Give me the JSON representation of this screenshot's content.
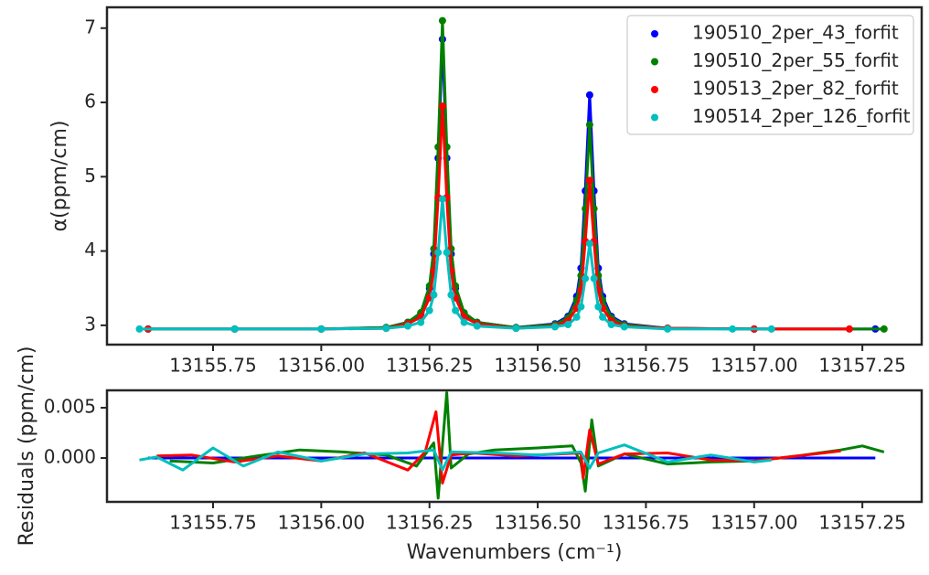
{
  "chart_data": [
    {
      "type": "line",
      "marker": true,
      "ylabel": "α(ppm/cm)",
      "legend": "upper right",
      "xlim": [
        13155.505,
        13157.387
      ],
      "ylim": [
        2.74,
        7.28
      ],
      "xticks": [
        13155.75,
        {
          "value": 13156.0,
          "label": "13156.00"
        },
        13156.25,
        {
          "value": 13156.5,
          "label": "13156.50"
        },
        13156.75,
        {
          "value": 13157.0,
          "label": "13157.00"
        },
        13157.25
      ],
      "yticks": [
        3,
        4,
        5,
        6,
        7
      ],
      "series": [
        {
          "name": "190510_2per_43_forfit",
          "color": "#0000ff",
          "x": [
            13155.6,
            13155.8,
            13156.0,
            13156.15,
            13156.2,
            13156.23,
            13156.25,
            13156.26,
            13156.27,
            13156.28,
            13156.29,
            13156.3,
            13156.31,
            13156.33,
            13156.36,
            13156.45,
            13156.54,
            13156.57,
            13156.59,
            13156.6,
            13156.61,
            13156.62,
            13156.63,
            13156.64,
            13156.65,
            13156.67,
            13156.7,
            13156.8,
            13157.0,
            13157.28
          ],
          "values": [
            2.95,
            2.95,
            2.95,
            2.97,
            3.04,
            3.16,
            3.5,
            3.96,
            5.25,
            6.85,
            5.25,
            3.96,
            3.5,
            3.16,
            3.04,
            2.97,
            3.02,
            3.12,
            3.39,
            3.77,
            4.81,
            6.1,
            4.81,
            3.77,
            3.39,
            3.12,
            3.02,
            2.96,
            2.95,
            2.95
          ]
        },
        {
          "name": "190510_2per_55_forfit",
          "color": "#008000",
          "x": [
            13155.6,
            13155.8,
            13156.0,
            13156.15,
            13156.2,
            13156.23,
            13156.25,
            13156.26,
            13156.27,
            13156.28,
            13156.29,
            13156.3,
            13156.31,
            13156.33,
            13156.36,
            13156.45,
            13156.54,
            13156.57,
            13156.59,
            13156.6,
            13156.61,
            13156.62,
            13156.63,
            13156.64,
            13156.65,
            13156.67,
            13156.7,
            13156.8,
            13157.0,
            13157.3
          ],
          "values": [
            2.95,
            2.95,
            2.95,
            2.97,
            3.04,
            3.17,
            3.53,
            4.03,
            5.4,
            7.1,
            5.4,
            4.03,
            3.53,
            3.17,
            3.04,
            2.97,
            3.01,
            3.1,
            3.34,
            3.67,
            4.57,
            5.7,
            4.57,
            3.67,
            3.34,
            3.1,
            3.01,
            2.96,
            2.95,
            2.95
          ]
        },
        {
          "name": "190513_2per_82_forfit",
          "color": "#ff0000",
          "x": [
            13155.6,
            13155.8,
            13156.0,
            13156.15,
            13156.2,
            13156.23,
            13156.25,
            13156.26,
            13156.27,
            13156.28,
            13156.29,
            13156.3,
            13156.31,
            13156.33,
            13156.36,
            13156.45,
            13156.54,
            13156.57,
            13156.59,
            13156.6,
            13156.61,
            13156.62,
            13156.63,
            13156.64,
            13156.65,
            13156.67,
            13156.7,
            13156.8,
            13157.0,
            13157.22
          ],
          "values": [
            2.95,
            2.95,
            2.95,
            2.96,
            3.02,
            3.11,
            3.37,
            3.73,
            4.72,
            5.95,
            4.72,
            3.73,
            3.37,
            3.11,
            3.02,
            2.96,
            2.99,
            3.06,
            3.23,
            3.47,
            4.13,
            4.95,
            4.13,
            3.47,
            3.23,
            3.06,
            2.99,
            2.96,
            2.95,
            2.95
          ]
        },
        {
          "name": "190514_2per_126_forfit",
          "color": "#00bfbf",
          "x": [
            13155.58,
            13155.8,
            13156.0,
            13156.15,
            13156.2,
            13156.23,
            13156.25,
            13156.26,
            13156.27,
            13156.28,
            13156.29,
            13156.3,
            13156.31,
            13156.33,
            13156.36,
            13156.45,
            13156.54,
            13156.57,
            13156.59,
            13156.6,
            13156.61,
            13156.62,
            13156.63,
            13156.64,
            13156.65,
            13156.67,
            13156.7,
            13156.8,
            13156.95,
            13157.04
          ],
          "values": [
            2.95,
            2.95,
            2.95,
            2.96,
            2.99,
            3.04,
            3.2,
            3.41,
            3.98,
            4.7,
            3.98,
            3.41,
            3.2,
            3.04,
            2.99,
            2.96,
            2.98,
            3.01,
            3.11,
            3.25,
            3.63,
            4.1,
            3.63,
            3.25,
            3.11,
            3.01,
            2.98,
            2.95,
            2.95,
            2.95
          ]
        }
      ]
    },
    {
      "type": "line",
      "marker": false,
      "ylabel": "Residuals (ppm/cm)",
      "xlabel": "Wavenumbers (cm⁻¹)",
      "xlim": [
        13155.505,
        13157.387
      ],
      "ylim": [
        -0.00436,
        0.00673
      ],
      "xticks": [
        13155.75,
        {
          "value": 13156.0,
          "label": "13156.00"
        },
        13156.25,
        {
          "value": 13156.5,
          "label": "13156.50"
        },
        13156.75,
        {
          "value": 13157.0,
          "label": "13157.00"
        },
        13157.25
      ],
      "yticks": [
        {
          "value": 0,
          "label": "0.000"
        },
        0.005
      ],
      "series": [
        {
          "color": "#0000ff",
          "x": [
            13155.6,
            13157.28
          ],
          "values": [
            0,
            0
          ]
        },
        {
          "color": "#008000",
          "x": [
            13155.65,
            13155.75,
            13155.85,
            13155.95,
            13156.05,
            13156.15,
            13156.22,
            13156.26,
            13156.27,
            13156.29,
            13156.3,
            13156.34,
            13156.4,
            13156.5,
            13156.58,
            13156.6,
            13156.61,
            13156.625,
            13156.64,
            13156.7,
            13156.8,
            13156.9,
            13157.0,
            13157.1,
            13157.2,
            13157.25,
            13157.3
          ],
          "values": [
            -0.0003,
            -0.0005,
            0.0002,
            0.0008,
            0.0006,
            0.0003,
            -0.0008,
            0.0015,
            -0.004,
            0.0065,
            -0.001,
            0.0004,
            0.0008,
            0.001,
            0.0012,
            -0.0005,
            -0.0033,
            0.0038,
            -0.0008,
            0.0004,
            -0.0006,
            -0.0004,
            -0.0003,
            0.0002,
            0.0008,
            0.0012,
            0.0006
          ]
        },
        {
          "color": "#ff0000",
          "x": [
            13155.62,
            13155.7,
            13155.8,
            13155.9,
            13156.0,
            13156.1,
            13156.2,
            13156.24,
            13156.265,
            13156.28,
            13156.3,
            13156.35,
            13156.45,
            13156.55,
            13156.6,
            13156.605,
            13156.62,
            13156.64,
            13156.7,
            13156.8,
            13156.9,
            13157.0,
            13157.1,
            13157.2
          ],
          "values": [
            0.0002,
            0.0003,
            -0.0004,
            0.0002,
            -0.0003,
            0.0005,
            -0.0012,
            0.0006,
            0.0046,
            -0.0025,
            0.0003,
            0.0005,
            0.0002,
            0.0004,
            0.0005,
            -0.002,
            0.0028,
            -0.0006,
            0.0004,
            0.0005,
            -0.0002,
            -0.0003,
            0.0002,
            0.0007
          ]
        },
        {
          "color": "#00bfbf",
          "x": [
            13155.58,
            13155.62,
            13155.68,
            13155.75,
            13155.82,
            13155.9,
            13156.0,
            13156.1,
            13156.2,
            13156.26,
            13156.28,
            13156.3,
            13156.4,
            13156.5,
            13156.6,
            13156.62,
            13156.64,
            13156.7,
            13156.8,
            13156.9,
            13157.0,
            13157.04
          ],
          "values": [
            -0.0002,
            0.0001,
            -0.0012,
            0.001,
            -0.0008,
            0.0006,
            -0.0003,
            0.0004,
            0.0005,
            0.0008,
            -0.0012,
            0.0006,
            0.0005,
            0.0003,
            0.0006,
            -0.001,
            0.0005,
            0.0013,
            -0.0004,
            0.0003,
            -0.0004,
            -0.0002
          ]
        }
      ]
    }
  ]
}
